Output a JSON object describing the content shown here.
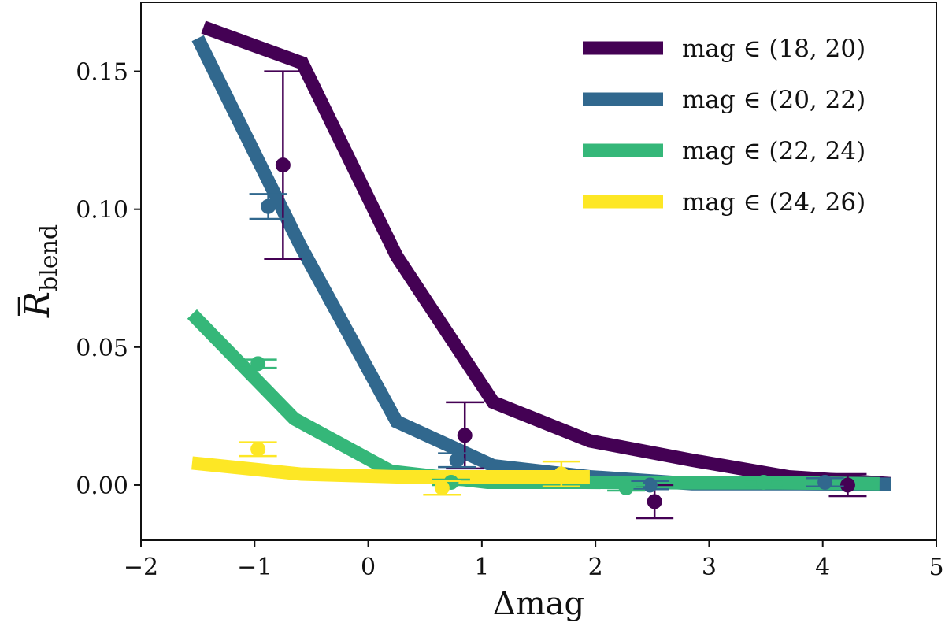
{
  "chart_data": {
    "type": "line",
    "xlabel": "Δmag",
    "ylabel_main": "R",
    "ylabel_sub": "blend",
    "xlim": [
      -2,
      5
    ],
    "ylim": [
      -0.02,
      0.175
    ],
    "xticks": [
      -2,
      -1,
      0,
      1,
      2,
      3,
      4,
      5
    ],
    "yticks": [
      0.0,
      0.05,
      0.1,
      0.15
    ],
    "xtick_labels": [
      "−2",
      "−1",
      "0",
      "1",
      "2",
      "3",
      "4",
      "5"
    ],
    "ytick_labels": [
      "0.00",
      "0.05",
      "0.10",
      "0.15"
    ],
    "legend_position": "top-right",
    "series": [
      {
        "name": "mag ∈ (18, 20)",
        "color": "#440154",
        "line_x": [
          -1.45,
          -0.58,
          0.25,
          1.1,
          1.95,
          2.85,
          3.7,
          4.6
        ],
        "line_y": [
          0.166,
          0.153,
          0.083,
          0.03,
          0.016,
          0.009,
          0.003,
          0.0005
        ],
        "points": [
          {
            "x": -0.75,
            "y": 0.116,
            "err": 0.034
          },
          {
            "x": 0.85,
            "y": 0.018,
            "err": 0.012
          },
          {
            "x": 2.52,
            "y": -0.006,
            "err": 0.006
          },
          {
            "x": 4.22,
            "y": 0.0,
            "err": 0.004
          }
        ]
      },
      {
        "name": "mag ∈ (20, 22)",
        "color": "#31688e",
        "line_x": [
          -1.5,
          -0.6,
          0.25,
          1.1,
          1.95,
          2.85,
          3.7,
          4.6
        ],
        "line_y": [
          0.162,
          0.087,
          0.023,
          0.007,
          0.003,
          0.0005,
          0.0005,
          0.0003
        ],
        "points": [
          {
            "x": -0.88,
            "y": 0.101,
            "err": 0.0045
          },
          {
            "x": 0.78,
            "y": 0.009,
            "err": 0.0025
          },
          {
            "x": 2.48,
            "y": 0.0,
            "err": 0.0015
          },
          {
            "x": 4.02,
            "y": 0.001,
            "err": 0.0015
          }
        ]
      },
      {
        "name": "mag ∈ (22, 24)",
        "color": "#35b779",
        "line_x": [
          -1.55,
          -0.65,
          0.2,
          1.05,
          1.9,
          2.75,
          3.6,
          4.5
        ],
        "line_y": [
          0.062,
          0.024,
          0.005,
          0.001,
          0.001,
          0.0008,
          0.0008,
          0.0005
        ],
        "points": [
          {
            "x": -0.97,
            "y": 0.044,
            "err": 0.0015
          },
          {
            "x": 0.73,
            "y": 0.001,
            "err": 0.001
          },
          {
            "x": 2.27,
            "y": -0.001,
            "err": 0.001
          },
          {
            "x": 3.48,
            "y": 0.001,
            "err": 0.001
          }
        ]
      },
      {
        "name": "mag ∈ (24, 26)",
        "color": "#fde725",
        "line_x": [
          -1.55,
          -0.6,
          0.25,
          1.1,
          1.95
        ],
        "line_y": [
          0.008,
          0.004,
          0.003,
          0.003,
          0.003
        ],
        "points": [
          {
            "x": -0.97,
            "y": 0.013,
            "err": 0.0025
          },
          {
            "x": 0.65,
            "y": -0.001,
            "err": 0.0025
          },
          {
            "x": 1.7,
            "y": 0.004,
            "err": 0.0045
          }
        ]
      }
    ]
  }
}
